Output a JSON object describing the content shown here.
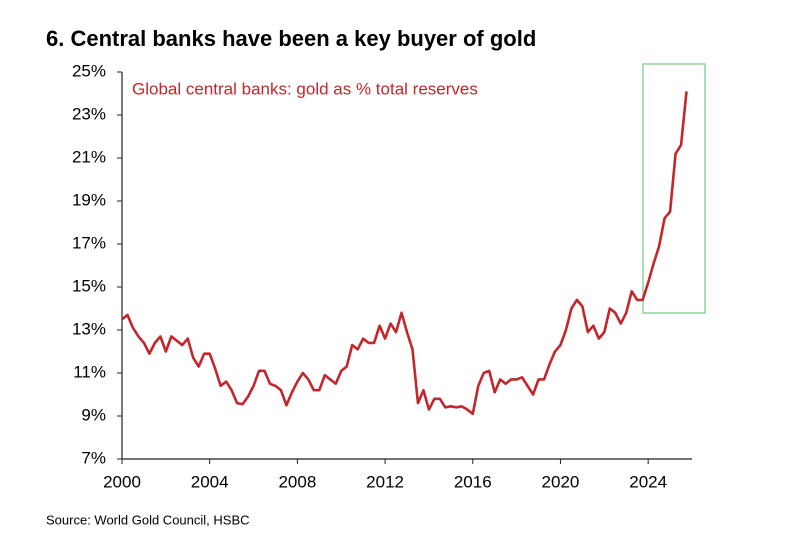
{
  "chart_data": {
    "type": "line",
    "title": "6. Central banks have been a key buyer of gold",
    "source": "Source: World Gold Council, HSBC",
    "xlim": [
      2000,
      2026
    ],
    "xticks": [
      2000,
      2004,
      2008,
      2012,
      2016,
      2020,
      2024
    ],
    "ylim": [
      7,
      25
    ],
    "yticks": [
      {
        "value": 7,
        "label": "7%"
      },
      {
        "value": 9,
        "label": "9%"
      },
      {
        "value": 11,
        "label": "11%"
      },
      {
        "value": 13,
        "label": "13%"
      },
      {
        "value": 15,
        "label": "15%"
      },
      {
        "value": 17,
        "label": "17%"
      },
      {
        "value": 19,
        "label": "19%"
      },
      {
        "value": 21,
        "label": "21%"
      },
      {
        "value": 23,
        "label": "23%"
      },
      {
        "value": 25,
        "label": "25%"
      }
    ],
    "grid": false,
    "x": [
      2000.0,
      2000.25,
      2000.5,
      2000.75,
      2001.0,
      2001.25,
      2001.5,
      2001.75,
      2002.0,
      2002.25,
      2002.5,
      2002.75,
      2003.0,
      2003.25,
      2003.5,
      2003.75,
      2004.0,
      2004.25,
      2004.5,
      2004.75,
      2005.0,
      2005.25,
      2005.5,
      2005.75,
      2006.0,
      2006.25,
      2006.5,
      2006.75,
      2007.0,
      2007.25,
      2007.5,
      2007.75,
      2008.0,
      2008.25,
      2008.5,
      2008.75,
      2009.0,
      2009.25,
      2009.5,
      2009.75,
      2010.0,
      2010.25,
      2010.5,
      2010.75,
      2011.0,
      2011.25,
      2011.5,
      2011.75,
      2012.0,
      2012.25,
      2012.5,
      2012.75,
      2013.0,
      2013.25,
      2013.5,
      2013.75,
      2014.0,
      2014.25,
      2014.5,
      2014.75,
      2015.0,
      2015.25,
      2015.5,
      2015.75,
      2016.0,
      2016.25,
      2016.5,
      2016.75,
      2017.0,
      2017.25,
      2017.5,
      2017.75,
      2018.0,
      2018.25,
      2018.5,
      2018.75,
      2019.0,
      2019.25,
      2019.5,
      2019.75,
      2020.0,
      2020.25,
      2020.5,
      2020.75,
      2021.0,
      2021.25,
      2021.5,
      2021.75,
      2022.0,
      2022.25,
      2022.5,
      2022.75,
      2023.0,
      2023.25,
      2023.5,
      2023.75,
      2024.0,
      2024.25,
      2024.5,
      2024.75,
      2025.0,
      2025.25,
      2025.5,
      2025.75
    ],
    "series": [
      {
        "name": "Global central banks: gold as % total reserves",
        "color": "#c3272b",
        "values": [
          13.5,
          13.7,
          13.1,
          12.7,
          12.4,
          11.9,
          12.4,
          12.7,
          12.0,
          12.7,
          12.5,
          12.3,
          12.6,
          11.7,
          11.3,
          11.9,
          11.9,
          11.2,
          10.4,
          10.6,
          10.2,
          9.6,
          9.55,
          9.9,
          10.4,
          11.1,
          11.1,
          10.5,
          10.4,
          10.2,
          9.5,
          10.1,
          10.6,
          11.0,
          10.7,
          10.2,
          10.2,
          10.9,
          10.7,
          10.5,
          11.1,
          11.3,
          12.3,
          12.1,
          12.6,
          12.4,
          12.4,
          13.2,
          12.6,
          13.3,
          12.9,
          13.8,
          12.9,
          12.1,
          9.6,
          10.2,
          9.3,
          9.8,
          9.8,
          9.4,
          9.45,
          9.4,
          9.45,
          9.3,
          9.1,
          10.4,
          11.0,
          11.1,
          10.1,
          10.7,
          10.5,
          10.7,
          10.7,
          10.8,
          10.4,
          10.0,
          10.7,
          10.7,
          11.4,
          12.0,
          12.3,
          13.0,
          14.0,
          14.4,
          14.1,
          12.9,
          13.2,
          12.6,
          12.9,
          14.0,
          13.8,
          13.3,
          13.8,
          14.8,
          14.4,
          14.4,
          15.2,
          16.1,
          16.9,
          18.2,
          18.5,
          21.2,
          21.6,
          24.1
        ]
      }
    ]
  }
}
